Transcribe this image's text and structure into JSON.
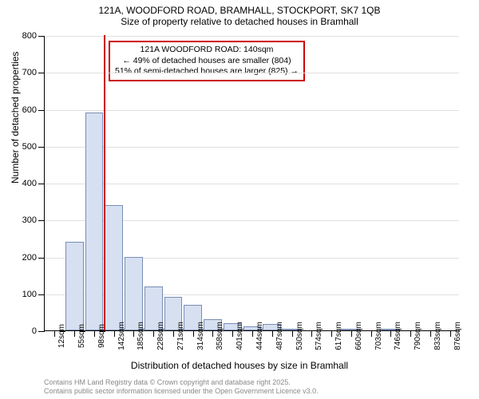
{
  "title": "121A, WOODFORD ROAD, BRAMHALL, STOCKPORT, SK7 1QB",
  "subtitle": "Size of property relative to detached houses in Bramhall",
  "chart": {
    "type": "histogram",
    "ylabel": "Number of detached properties",
    "xlabel": "Distribution of detached houses by size in Bramhall",
    "ylim": [
      0,
      800
    ],
    "ytick_step": 100,
    "categories": [
      "12sqm",
      "55sqm",
      "98sqm",
      "142sqm",
      "185sqm",
      "228sqm",
      "271sqm",
      "314sqm",
      "358sqm",
      "401sqm",
      "444sqm",
      "487sqm",
      "530sqm",
      "574sqm",
      "617sqm",
      "660sqm",
      "703sqm",
      "746sqm",
      "790sqm",
      "833sqm",
      "876sqm"
    ],
    "values": [
      0,
      240,
      590,
      340,
      200,
      120,
      90,
      70,
      30,
      20,
      10,
      18,
      3,
      0,
      0,
      3,
      0,
      2,
      0,
      0,
      0
    ],
    "bar_color": "#d6e0f0",
    "bar_border_color": "#7a8db5",
    "grid_color": "#e0e0e0",
    "background_color": "#ffffff",
    "marker_color": "#cc0000",
    "marker_position_index": 3,
    "marker_height": 800,
    "annotation": {
      "line1": "121A WOODFORD ROAD: 140sqm",
      "line2": "← 49% of detached houses are smaller (804)",
      "line3": "51% of semi-detached houses are larger (825) →",
      "border_color": "#cc0000"
    }
  },
  "footer": {
    "line1": "Contains HM Land Registry data © Crown copyright and database right 2025.",
    "line2": "Contains public sector information licensed under the Open Government Licence v3.0."
  }
}
